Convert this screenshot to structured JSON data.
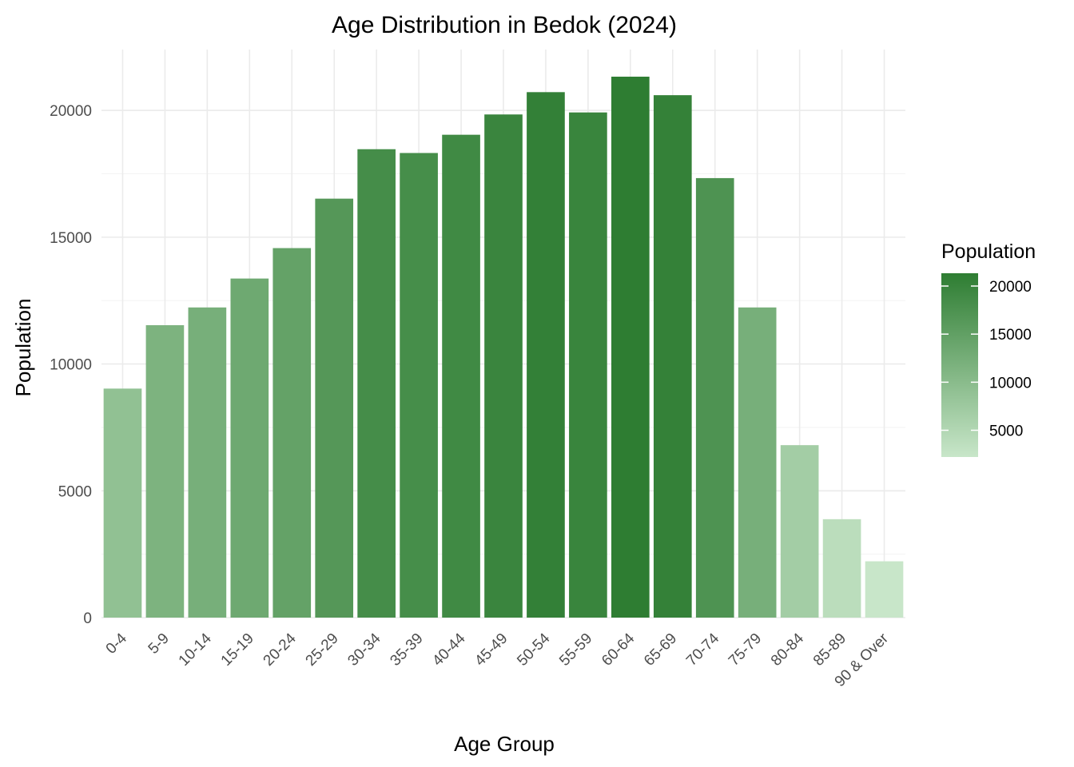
{
  "chart_data": {
    "type": "bar",
    "title": "Age Distribution in Bedok (2024)",
    "xlabel": "Age Group",
    "ylabel": "Population",
    "categories": [
      "0-4",
      "5-9",
      "10-14",
      "15-19",
      "20-24",
      "25-29",
      "30-34",
      "35-39",
      "40-44",
      "45-49",
      "50-54",
      "55-59",
      "60-64",
      "65-69",
      "70-74",
      "75-79",
      "80-84",
      "85-89",
      "90 & Over"
    ],
    "values": [
      9030,
      11530,
      12230,
      13370,
      14570,
      16520,
      18470,
      18320,
      19040,
      19840,
      20720,
      19920,
      21330,
      20600,
      17330,
      12230,
      6800,
      3880,
      2220
    ],
    "ylim": [
      0,
      22400
    ],
    "yticks": [
      0,
      5000,
      10000,
      15000,
      20000
    ],
    "grid": true,
    "fill_scale": {
      "low_color": "#c8e6c9",
      "high_color": "#2e7d32",
      "min": 2220,
      "max": 21330
    },
    "legend": {
      "title": "Population",
      "position": "right",
      "ticks": [
        5000,
        10000,
        15000,
        20000
      ]
    }
  }
}
